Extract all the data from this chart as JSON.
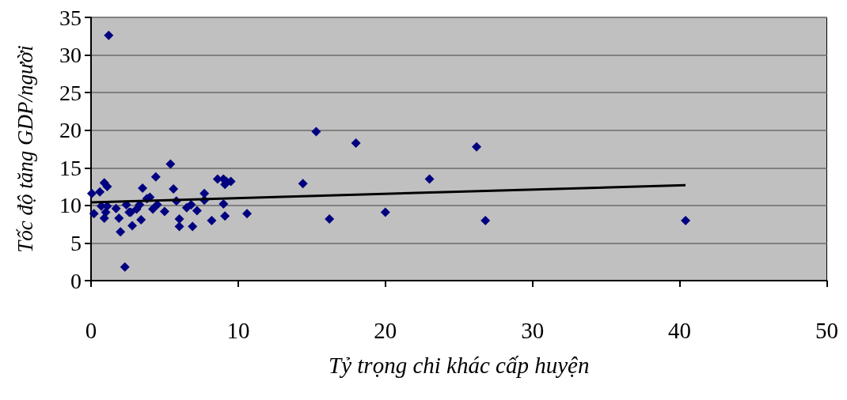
{
  "chart_data": {
    "type": "scatter",
    "xlabel": "Tỷ trọng chi khác cấp huyện",
    "ylabel": "Tốc độ tăng GDP/người",
    "xlim": [
      0,
      50
    ],
    "xticks": [
      0,
      10,
      20,
      30,
      40,
      50
    ],
    "ylim": [
      0,
      35
    ],
    "yticks": [
      0,
      5,
      10,
      15,
      20,
      25,
      30,
      35
    ],
    "grid": "y",
    "series": [
      {
        "color": "#000080",
        "marker": "diamond",
        "x": [
          0.05,
          0.2,
          0.6,
          0.7,
          0.9,
          1.1,
          0.9,
          1.0,
          1.2,
          1.1,
          1.7,
          1.9,
          2.0,
          2.3,
          2.4,
          2.6,
          2.7,
          2.8,
          3.1,
          3.3,
          3.4,
          3.5,
          3.8,
          4.0,
          4.2,
          4.4,
          4.5,
          5.0,
          5.4,
          5.6,
          5.8,
          6.0,
          6.0,
          6.5,
          6.8,
          6.9,
          7.2,
          7.7,
          7.7,
          8.2,
          8.6,
          9.0,
          9.1,
          9.2,
          9.5,
          9.0,
          9.1,
          10.6,
          14.4,
          15.3,
          16.2,
          18.0,
          20.0,
          23.0,
          26.2,
          26.8,
          40.4
        ],
        "values": [
          11.6,
          8.9,
          11.8,
          9.9,
          13.0,
          12.5,
          8.3,
          9.1,
          32.6,
          9.9,
          9.6,
          8.3,
          6.5,
          1.8,
          10.1,
          9.1,
          9.1,
          7.3,
          9.5,
          10.1,
          8.1,
          12.3,
          10.9,
          11.1,
          9.5,
          13.8,
          10.1,
          9.2,
          15.5,
          12.2,
          10.6,
          8.2,
          7.2,
          9.7,
          10.1,
          7.2,
          9.3,
          11.6,
          10.7,
          8.0,
          13.5,
          13.5,
          12.8,
          13.2,
          13.2,
          10.2,
          8.6,
          8.9,
          12.9,
          19.8,
          8.2,
          18.3,
          9.1,
          13.5,
          17.8,
          8.0,
          8.0
        ]
      },
      {
        "type": "line",
        "marker": "none",
        "color": "#000000",
        "x": [
          0,
          40.4
        ],
        "values": [
          10.4,
          12.7
        ]
      }
    ]
  }
}
